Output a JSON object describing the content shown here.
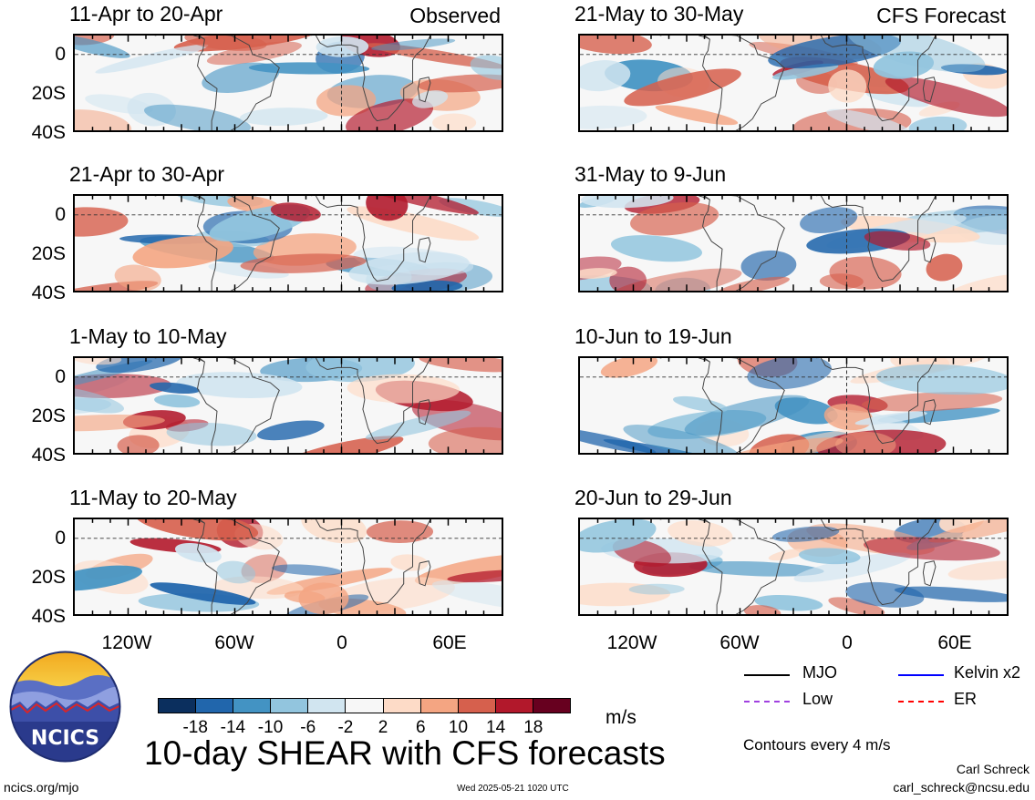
{
  "panels_left": [
    {
      "title": "11-Apr to 20-Apr",
      "tag": "Observed"
    },
    {
      "title": "21-Apr to 30-Apr",
      "tag": ""
    },
    {
      "title": "1-May to 10-May",
      "tag": ""
    },
    {
      "title": "11-May to 20-May",
      "tag": ""
    }
  ],
  "panels_right": [
    {
      "title": "21-May to 30-May",
      "tag": "CFS Forecast"
    },
    {
      "title": "31-May to 9-Jun",
      "tag": ""
    },
    {
      "title": "10-Jun to 19-Jun",
      "tag": ""
    },
    {
      "title": "20-Jun to 29-Jun",
      "tag": ""
    }
  ],
  "lat_labels": [
    "0",
    "20S",
    "40S"
  ],
  "lon_labels": [
    "120W",
    "60W",
    "0",
    "60E"
  ],
  "colorbar": {
    "colors": [
      "#0b2f5e",
      "#2166ac",
      "#4393c3",
      "#92c5de",
      "#d1e5f0",
      "#f7f7f7",
      "#fddbc7",
      "#f4a582",
      "#d6604d",
      "#b2182b",
      "#67001f"
    ],
    "labels": [
      "-18",
      "-14",
      "-10",
      "-6",
      "-2",
      "2",
      "6",
      "10",
      "14",
      "18"
    ],
    "unit": "m/s"
  },
  "legend": {
    "mjo": {
      "label": "MJO",
      "color": "#000000"
    },
    "kelvin": {
      "label": "Kelvin x2",
      "color": "#0000ff"
    },
    "low": {
      "label": "Low",
      "color": "#a040e0"
    },
    "er": {
      "label": "ER",
      "color": "#ff0000"
    }
  },
  "contours_note": "Contours every 4 m/s",
  "main_title": "10-day SHEAR with CFS forecasts",
  "logo_text": "NCICS",
  "site": "ncics.org/mjo",
  "timestamp": "Wed 2025-05-21 1020 UTC",
  "author": "Carl Schreck",
  "email": "carl_schreck@ncsu.edu"
}
